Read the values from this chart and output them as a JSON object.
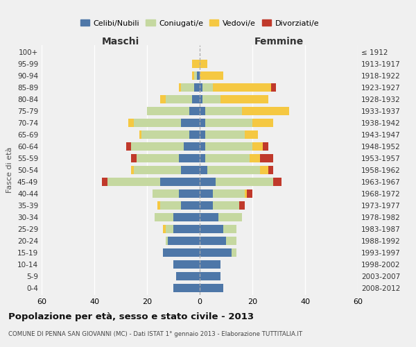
{
  "age_groups": [
    "0-4",
    "5-9",
    "10-14",
    "15-19",
    "20-24",
    "25-29",
    "30-34",
    "35-39",
    "40-44",
    "45-49",
    "50-54",
    "55-59",
    "60-64",
    "65-69",
    "70-74",
    "75-79",
    "80-84",
    "85-89",
    "90-94",
    "95-99",
    "100+"
  ],
  "birth_years": [
    "2008-2012",
    "2003-2007",
    "1998-2002",
    "1993-1997",
    "1988-1992",
    "1983-1987",
    "1978-1982",
    "1973-1977",
    "1968-1972",
    "1963-1967",
    "1958-1962",
    "1953-1957",
    "1948-1952",
    "1943-1947",
    "1938-1942",
    "1933-1937",
    "1928-1932",
    "1923-1927",
    "1918-1922",
    "1913-1917",
    "≤ 1912"
  ],
  "maschi": {
    "celibi": [
      10,
      9,
      10,
      14,
      12,
      10,
      10,
      7,
      8,
      15,
      7,
      8,
      6,
      4,
      7,
      4,
      3,
      2,
      1,
      0,
      0
    ],
    "coniugati": [
      0,
      0,
      0,
      0,
      1,
      3,
      7,
      8,
      10,
      20,
      18,
      16,
      20,
      18,
      18,
      16,
      10,
      5,
      1,
      0,
      0
    ],
    "vedovi": [
      0,
      0,
      0,
      0,
      0,
      1,
      0,
      1,
      0,
      0,
      1,
      0,
      0,
      1,
      2,
      0,
      2,
      1,
      1,
      3,
      0
    ],
    "divorziati": [
      0,
      0,
      0,
      0,
      0,
      0,
      0,
      0,
      0,
      2,
      0,
      2,
      2,
      0,
      0,
      0,
      0,
      0,
      0,
      0,
      0
    ]
  },
  "femmine": {
    "nubili": [
      9,
      8,
      8,
      12,
      10,
      9,
      7,
      5,
      5,
      6,
      3,
      2,
      2,
      2,
      2,
      2,
      1,
      1,
      0,
      0,
      0
    ],
    "coniugate": [
      0,
      0,
      0,
      2,
      4,
      5,
      9,
      10,
      12,
      22,
      20,
      17,
      18,
      15,
      18,
      14,
      7,
      4,
      0,
      0,
      0
    ],
    "vedove": [
      0,
      0,
      0,
      0,
      0,
      0,
      0,
      0,
      1,
      0,
      3,
      4,
      4,
      5,
      8,
      18,
      18,
      22,
      9,
      3,
      0
    ],
    "divorziate": [
      0,
      0,
      0,
      0,
      0,
      0,
      0,
      2,
      2,
      3,
      2,
      5,
      2,
      0,
      0,
      0,
      0,
      2,
      0,
      0,
      0
    ]
  },
  "colors": {
    "celibi": "#4e77a8",
    "coniugati": "#c5d8a0",
    "vedovi": "#f5c842",
    "divorziati": "#c0392b"
  },
  "title": "Popolazione per età, sesso e stato civile - 2013",
  "subtitle": "COMUNE DI PENNA SAN GIOVANNI (MC) - Dati ISTAT 1° gennaio 2013 - Elaborazione TUTTITALIA.IT",
  "label_maschi": "Maschi",
  "label_femmine": "Femmine",
  "ylabel_left": "Fasce di età",
  "xlim": 60,
  "background_color": "#f0f0f0",
  "grid_color": "#ffffff",
  "legend": [
    "Celibi/Nubili",
    "Coniugati/e",
    "Vedovi/e",
    "Divorziati/e"
  ]
}
